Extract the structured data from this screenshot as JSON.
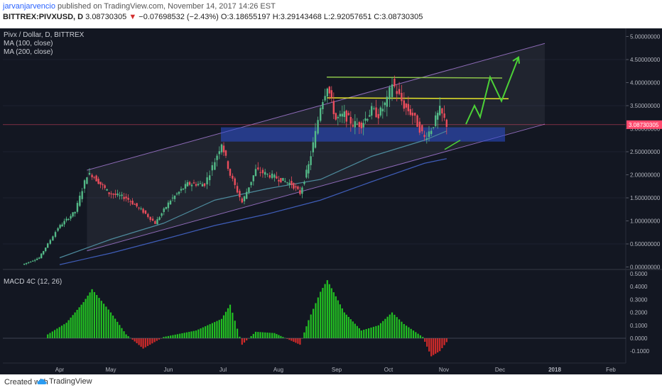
{
  "header": {
    "author": "jarvanjarvencio",
    "published_text": "published on TradingView.com, November 14, 2017 14:26 EST",
    "symbol": "BITTREX:PIVXUSD, D",
    "last": "3.08730305",
    "change": "−0.07698532 (−2.43%)",
    "open_label": "O:",
    "open": "3.18655197",
    "high_label": "H:",
    "high": "3.29143468",
    "low_label": "L:",
    "low": "2.92057651",
    "close_label": "C:",
    "close": "3.08730305"
  },
  "legend": {
    "title": "Pivx / Dollar, D, BITTREX",
    "ma100": "MA (100, close)",
    "ma200": "MA (200, close)",
    "macd": "MACD 4C (12, 26)"
  },
  "footer": {
    "created_with": "Created with",
    "brand": "TradingView"
  },
  "colors": {
    "background": "#131722",
    "up": "#53b987",
    "down": "#eb4d5c",
    "ma100": "#4d8a9c",
    "ma200": "#3f5db8",
    "channel": "#8e6bb8",
    "support_box": "#2b4fd1",
    "resistance_line": "#8bc34a",
    "mid_line": "#e6e62a",
    "price_line": "#ff4b6e",
    "projection": "#4cd137",
    "macd_up": "#22c022",
    "macd_down": "#d12a2a"
  },
  "chart_data": [
    {
      "type": "line",
      "title": "Pivx / Dollar, D, BITTREX",
      "xlabel": "",
      "ylabel": "",
      "x_ticks": [
        "Apr",
        "May",
        "Jun",
        "Jul",
        "Aug",
        "Sep",
        "Oct",
        "Nov",
        "Dec",
        "2018",
        "Feb"
      ],
      "y_ticks": [
        "5.00000000",
        "4.50000000",
        "4.00000000",
        "3.50000000",
        "3.00000000",
        "2.50000000",
        "2.00000000",
        "1.50000000",
        "1.00000000",
        "0.50000000",
        "0.00000000"
      ],
      "ylim": [
        0,
        5.1
      ],
      "last_price_label": "3.08730305",
      "series": [
        {
          "name": "PIVXUSD",
          "x": [
            "Mar 10",
            "Mar 20",
            "Mar 25",
            "Mar 31",
            "Apr 10",
            "Apr 17",
            "Apr 20",
            "Apr 30",
            "May 10",
            "May 20",
            "May 27",
            "Jun 5",
            "Jun 15",
            "Jun 25",
            "Jul 1",
            "Jul 5",
            "Jul 10",
            "Jul 17",
            "Jul 25",
            "Aug 5",
            "Aug 15",
            "Aug 20",
            "Aug 25",
            "Aug 29",
            "Sep 1",
            "Sep 5",
            "Sep 10",
            "Sep 15",
            "Sep 20",
            "Sep 25",
            "Oct 1",
            "Oct 5",
            "Oct 10",
            "Oct 13",
            "Oct 20",
            "Oct 25",
            "Nov 1",
            "Nov 5",
            "Nov 10",
            "Nov 14"
          ],
          "values": [
            0.05,
            0.2,
            0.5,
            0.85,
            1.2,
            2.0,
            2.0,
            1.6,
            1.5,
            1.2,
            0.95,
            1.45,
            1.8,
            1.8,
            2.3,
            2.7,
            2.0,
            1.4,
            2.1,
            1.95,
            1.8,
            1.6,
            2.2,
            2.9,
            3.5,
            3.95,
            3.2,
            3.3,
            3.1,
            3.1,
            3.4,
            3.3,
            3.6,
            4.0,
            3.5,
            3.3,
            2.8,
            3.0,
            3.4,
            3.09
          ]
        },
        {
          "name": "MA (100, close)",
          "x": [
            "Apr 1",
            "May 1",
            "Jun 1",
            "Jul 1",
            "Aug 1",
            "Sep 1",
            "Oct 1",
            "Nov 1",
            "Nov 14"
          ],
          "values": [
            0.2,
            0.6,
            0.95,
            1.45,
            1.7,
            1.9,
            2.4,
            2.75,
            2.95
          ]
        },
        {
          "name": "MA (200, close)",
          "x": [
            "Apr 1",
            "May 1",
            "Jun 1",
            "Jul 1",
            "Aug 1",
            "Sep 1",
            "Oct 1",
            "Nov 1",
            "Nov 14"
          ],
          "values": [
            0.05,
            0.3,
            0.6,
            0.9,
            1.15,
            1.45,
            1.85,
            2.25,
            2.35
          ]
        }
      ]
    },
    {
      "type": "bar",
      "title": "MACD 4C (12, 26)",
      "y_ticks": [
        "0.5000",
        "0.4000",
        "0.3000",
        "0.2000",
        "0.1000",
        "0.0000",
        "-0.1000"
      ],
      "ylim": [
        -0.16,
        0.5
      ],
      "x": [
        "Mar 25",
        "Apr 5",
        "Apr 15",
        "Apr 20",
        "May 1",
        "May 10",
        "May 20",
        "Jun 1",
        "Jun 20",
        "Jul 5",
        "Jul 10",
        "Jul 17",
        "Jul 25",
        "Aug 5",
        "Aug 15",
        "Aug 20",
        "Aug 25",
        "Sep 1",
        "Sep 5",
        "Sep 15",
        "Sep 25",
        "Oct 5",
        "Oct 13",
        "Oct 20",
        "Oct 31",
        "Nov 5",
        "Nov 10",
        "Nov 14"
      ],
      "values": [
        0.03,
        0.12,
        0.28,
        0.38,
        0.2,
        0.03,
        -0.08,
        0.01,
        0.06,
        0.15,
        0.26,
        -0.05,
        0.05,
        0.04,
        -0.02,
        -0.05,
        0.14,
        0.36,
        0.45,
        0.2,
        0.06,
        0.1,
        0.2,
        0.11,
        0.01,
        -0.14,
        -0.1,
        -0.03
      ]
    }
  ]
}
